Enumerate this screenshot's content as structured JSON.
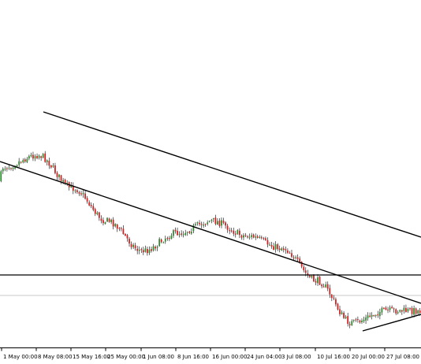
{
  "colors": {
    "background": "#ffffff",
    "bull_candle": "#2e8b2e",
    "bear_candle": "#d02020",
    "wick": "#000000",
    "trendline": "#000000",
    "axis": "#000000",
    "reference_line": "#c8c8c8"
  },
  "chart_data": {
    "type": "candlestick",
    "title": "",
    "xlabel": "",
    "ylabel": "",
    "x_tick_labels": [
      "1 May 00:00",
      "8 May 08:00",
      "15 May 16:00",
      "25 May 00:00",
      "1 Jun 08:00",
      "8 Jun 16:00",
      "16 Jun 00:00",
      "24 Jun 04:00",
      "3 Jul 08:00",
      "10 Jul 16:00",
      "20 Jul 00:00",
      "27 Jul 08:00"
    ],
    "y_axis_labels_visible": false,
    "price_path_keypoints": [
      {
        "x": "late Apr",
        "y": 0.54
      },
      {
        "x": "8 May 08:00",
        "y": 0.6
      },
      {
        "x": "15 May 16:00",
        "y": 0.64
      },
      {
        "x": "25 May 00:00",
        "y": 0.53
      },
      {
        "x": "1 Jun 08:00",
        "y": 0.42
      },
      {
        "x": "8 Jun 16:00",
        "y": 0.32
      },
      {
        "x": "16 Jun 00:00",
        "y": 0.38
      },
      {
        "x": "24 Jun 04:00",
        "y": 0.42
      },
      {
        "x": "3 Jul 08:00",
        "y": 0.37
      },
      {
        "x": "10 Jul 16:00",
        "y": 0.33
      },
      {
        "x": "20 Jul 00:00",
        "y": 0.22
      },
      {
        "x": "27 Jul 08:00",
        "y": 0.08
      },
      {
        "x": "end Jul",
        "y": 0.12
      }
    ],
    "candle_count": 210,
    "annotations": [
      {
        "type": "descending channel upper trendline"
      },
      {
        "type": "descending channel lower trendline"
      },
      {
        "type": "horizontal line"
      },
      {
        "type": "rising support line"
      }
    ],
    "grid": false,
    "legend": "none"
  }
}
